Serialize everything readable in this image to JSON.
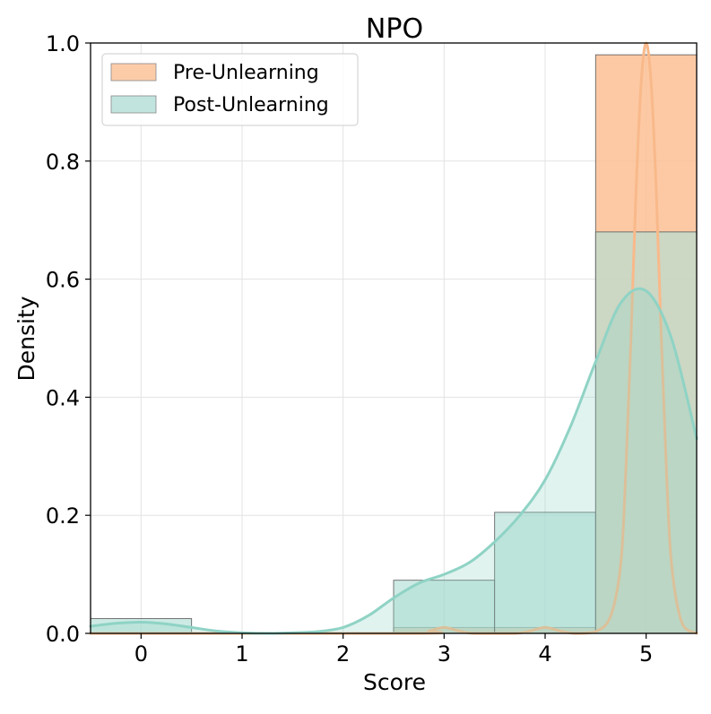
{
  "chart_data": {
    "type": "bar",
    "title": "NPO",
    "xlabel": "Score",
    "ylabel": "Density",
    "xlim": [
      -0.5,
      5.5
    ],
    "ylim": [
      0,
      1.0
    ],
    "x_ticks": [
      "0",
      "1",
      "2",
      "3",
      "4",
      "5"
    ],
    "y_ticks": [
      "0.0",
      "0.2",
      "0.4",
      "0.6",
      "0.8",
      "1.0"
    ],
    "grid": true,
    "legend_position": "top-left",
    "categories": [
      0,
      1,
      2,
      3,
      4,
      5
    ],
    "series": [
      {
        "name": "Pre-Unlearning",
        "color": "#fbbf94",
        "kde_color": "#f9b98a",
        "values": [
          0.0,
          0.0,
          0.0,
          0.01,
          0.01,
          0.98
        ],
        "kde": {
          "x": [
            -0.5,
            2.7,
            2.85,
            3.0,
            3.15,
            3.3,
            3.7,
            3.85,
            4.0,
            4.15,
            4.3,
            4.5,
            4.65,
            4.75,
            4.8,
            4.85,
            4.9,
            4.95,
            5.0,
            5.05,
            5.1,
            5.15,
            5.2,
            5.25,
            5.35,
            5.5
          ],
          "y": [
            0.0,
            0.0,
            0.004,
            0.01,
            0.004,
            0.0,
            0.0,
            0.004,
            0.01,
            0.004,
            0.0,
            0.003,
            0.03,
            0.12,
            0.28,
            0.5,
            0.75,
            0.93,
            1.0,
            0.93,
            0.75,
            0.5,
            0.28,
            0.12,
            0.02,
            0.0
          ]
        }
      },
      {
        "name": "Post-Unlearning",
        "color": "#b2dfd6",
        "kde_color": "#8fd3c5",
        "values": [
          0.025,
          0.0,
          0.0,
          0.09,
          0.205,
          0.68
        ],
        "kde": {
          "x": [
            -0.5,
            -0.25,
            0.0,
            0.25,
            0.5,
            0.75,
            1.0,
            1.25,
            1.5,
            1.75,
            2.0,
            2.25,
            2.5,
            2.75,
            3.0,
            3.25,
            3.5,
            3.75,
            4.0,
            4.25,
            4.5,
            4.75,
            5.0,
            5.25,
            5.5
          ],
          "y": [
            0.012,
            0.017,
            0.019,
            0.016,
            0.01,
            0.004,
            0.001,
            0.0,
            0.001,
            0.003,
            0.01,
            0.03,
            0.06,
            0.085,
            0.1,
            0.12,
            0.155,
            0.2,
            0.26,
            0.35,
            0.46,
            0.56,
            0.58,
            0.5,
            0.33
          ]
        }
      }
    ]
  }
}
